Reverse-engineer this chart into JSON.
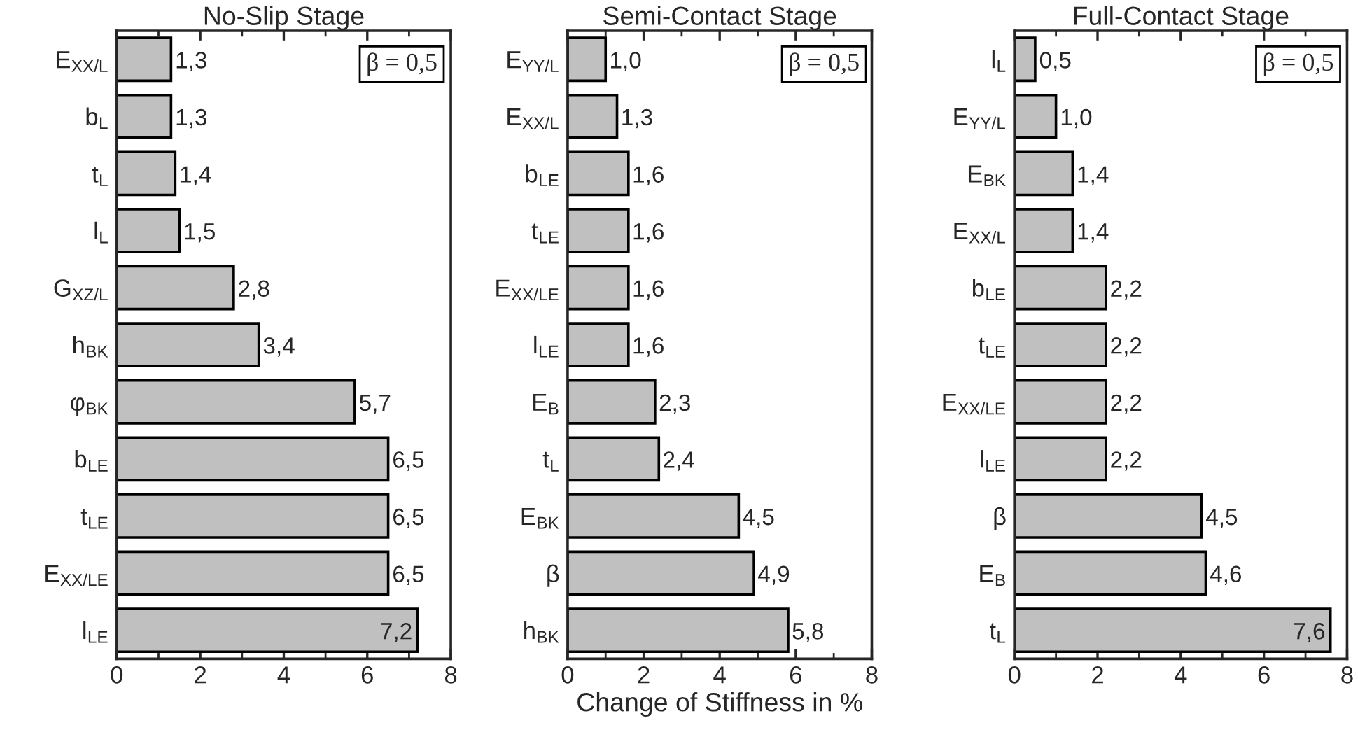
{
  "chart_data": [
    {
      "type": "bar",
      "orientation": "horizontal",
      "title": "No-Slip Stage",
      "categories": [
        "E$_{XX/L}$",
        "b$_{L}$",
        "t$_{L}$",
        "l$_{L}$",
        "G$_{XZ/L}$",
        "h$_{BK}$",
        "φ$_{BK}$",
        "b$_{LE}$",
        "t$_{LE}$",
        "E$_{XX/LE}$",
        "l$_{LE}$"
      ],
      "values": [
        1.3,
        1.3,
        1.4,
        1.5,
        2.8,
        3.4,
        5.7,
        6.5,
        6.5,
        6.5,
        7.2
      ],
      "value_labels": [
        "1,3",
        "1,3",
        "1,4",
        "1,5",
        "2,8",
        "3,4",
        "5,7",
        "6,5",
        "6,5",
        "6,5",
        "7,2"
      ],
      "color": "#c0c0c0",
      "xlim": [
        0,
        8
      ],
      "xticks": [
        0,
        2,
        4,
        6,
        8
      ],
      "annotations": [
        "β = 0,5"
      ],
      "grid": false
    },
    {
      "type": "bar",
      "orientation": "horizontal",
      "title": "Semi-Contact Stage",
      "xlabel": "Change of Stiffness in %",
      "categories": [
        "E$_{YY/L}$",
        "E$_{XX/L}$",
        "b$_{LE}$",
        "t$_{LE}$",
        "E$_{XX/LE}$",
        "l$_{LE}$",
        "E$_{B}$",
        "t$_{L}$",
        "E$_{BK}$",
        "β",
        "h$_{BK}$"
      ],
      "values": [
        1.0,
        1.3,
        1.6,
        1.6,
        1.6,
        1.6,
        2.3,
        2.4,
        4.5,
        4.9,
        5.8
      ],
      "value_labels": [
        "1,0",
        "1,3",
        "1,6",
        "1,6",
        "1,6",
        "1,6",
        "2,3",
        "2,4",
        "4,5",
        "4,9",
        "5,8"
      ],
      "color": "#c0c0c0",
      "xlim": [
        0,
        8
      ],
      "xticks": [
        0,
        2,
        4,
        6,
        8
      ],
      "annotations": [
        "β = 0,5"
      ],
      "grid": false
    },
    {
      "type": "bar",
      "orientation": "horizontal",
      "title": "Full-Contact Stage",
      "categories": [
        "l$_{L}$",
        "E$_{YY/L}$",
        "E$_{BK}$",
        "E$_{XX/L}$",
        "b$_{LE}$",
        "t$_{LE}$",
        "E$_{XX/LE}$",
        "l$_{LE}$",
        "β",
        "E$_{B}$",
        "t$_{L}$"
      ],
      "values": [
        0.5,
        1.0,
        1.4,
        1.4,
        2.2,
        2.2,
        2.2,
        2.2,
        4.5,
        4.6,
        7.6
      ],
      "value_labels": [
        "0,5",
        "1,0",
        "1,4",
        "1,4",
        "2,2",
        "2,2",
        "2,2",
        "2,2",
        "4,5",
        "4,6",
        "7,6"
      ],
      "color": "#c0c0c0",
      "xlim": [
        0,
        8
      ],
      "xticks": [
        0,
        2,
        4,
        6,
        8
      ],
      "annotations": [
        "β = 0,5"
      ],
      "grid": false
    }
  ]
}
